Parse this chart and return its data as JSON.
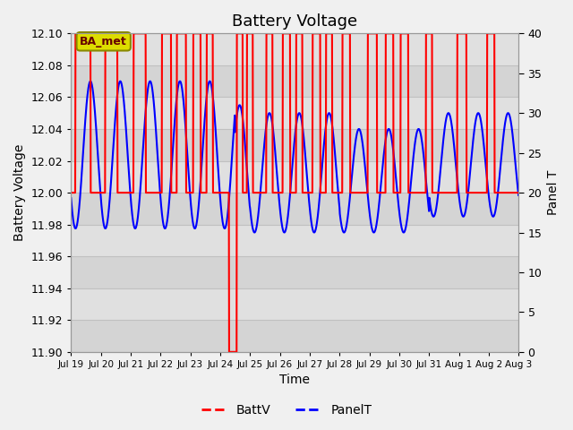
{
  "title": "Battery Voltage",
  "xlabel": "Time",
  "ylabel_left": "Battery Voltage",
  "ylabel_right": "Panel T",
  "ylim_left": [
    11.9,
    12.1
  ],
  "ylim_right": [
    0,
    40
  ],
  "bg_color": "#f0f0f0",
  "plot_bg_color": "#e8e8e8",
  "annotation_text": "BA_met",
  "annotation_bg": "#dddd00",
  "annotation_border": "#888800",
  "legend_labels": [
    "BattV",
    "PanelT"
  ],
  "batt_color": "red",
  "panel_color": "blue",
  "x_tick_labels": [
    "Jul 19",
    "Jul 20",
    "Jul 21",
    "Jul 22",
    "Jul 23",
    "Jul 24",
    "Jul 25",
    "Jul 26",
    "Jul 27",
    "Jul 28",
    "Jul 29",
    "Jul 30",
    "Jul 31",
    "Aug 1",
    "Aug 2",
    "Aug 3"
  ],
  "y_ticks_left": [
    11.9,
    11.92,
    11.94,
    11.96,
    11.98,
    12.0,
    12.02,
    12.04,
    12.06,
    12.08,
    12.1
  ],
  "y_ticks_right": [
    0,
    5,
    10,
    15,
    20,
    25,
    30,
    35,
    40
  ],
  "band_colors": [
    "#d4d4d4",
    "#e0e0e0"
  ],
  "grid_color": "#c0c0c0",
  "title_fontsize": 13,
  "label_fontsize": 10,
  "tick_fontsize": 9
}
